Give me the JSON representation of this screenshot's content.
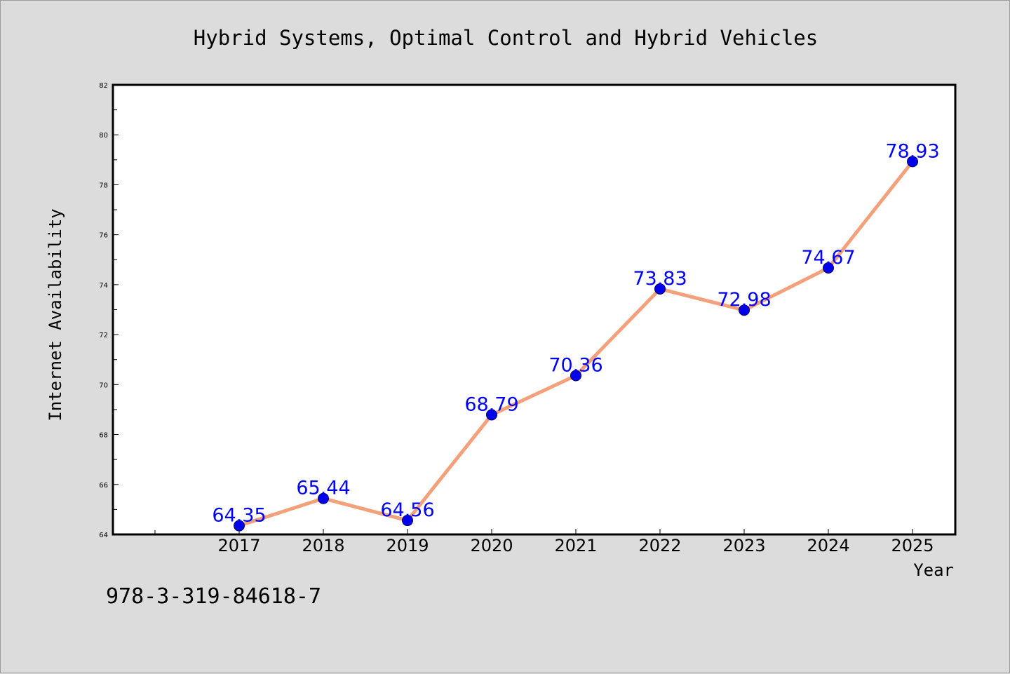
{
  "chart_data": {
    "type": "line",
    "title": "Hybrid Systems, Optimal Control and Hybrid Vehicles",
    "xlabel": "Year",
    "ylabel": "Internet Availability",
    "categories": [
      "2017",
      "2018",
      "2019",
      "2020",
      "2021",
      "2022",
      "2023",
      "2024",
      "2025"
    ],
    "values": [
      64.35,
      65.44,
      64.56,
      68.79,
      70.36,
      73.83,
      72.98,
      74.67,
      78.93
    ],
    "value_labels": [
      "64.35",
      "65.44",
      "64.56",
      "68.79",
      "70.36",
      "73.83",
      "72.98",
      "74.67",
      "78.93"
    ],
    "ylim": [
      64,
      82
    ],
    "yticks": [
      "64",
      "66",
      "68",
      "70",
      "72",
      "74",
      "76",
      "78",
      "80",
      "82"
    ],
    "grid": false,
    "legend": "none",
    "colors": {
      "line": "#f4a07a",
      "marker": "#0000ee",
      "data_label": "#0000ff",
      "plot_background": "#ffffff",
      "page_background": "#dcdcdc"
    }
  },
  "footer_text": "978-3-319-84618-7"
}
